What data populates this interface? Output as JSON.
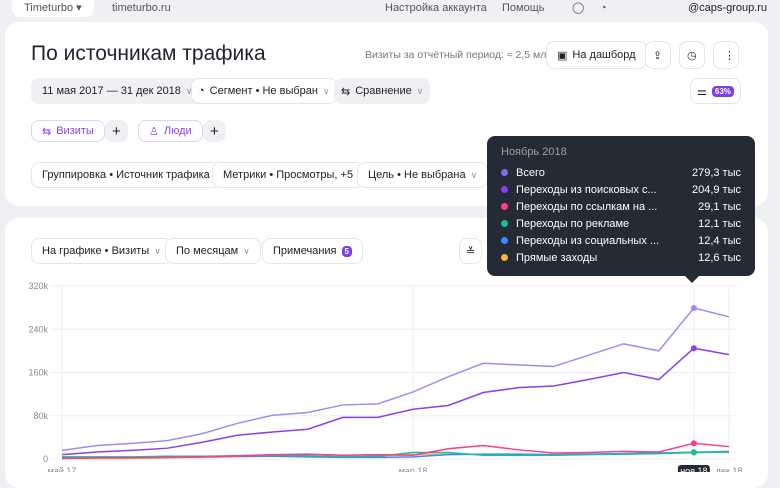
{
  "topbar": {
    "counter": "Timeturbo",
    "site": "timeturbo.ru",
    "account_settings": "Настройка аккаунта",
    "help": "Помощь",
    "user": "@caps-group.ru"
  },
  "header": {
    "title": "По источникам трафика",
    "visits_summary": "Визиты за отчётный период: ≈ 2,5 млн",
    "dashboard_label": "На дашборд",
    "settings_badge": "63%"
  },
  "filters": {
    "date_range": "11 мая 2017 — 31 дек 2018",
    "segment": "Сегмент • Не выбран",
    "comparison": "Сравнение"
  },
  "chips": {
    "visits": "Визиты",
    "people": "Люди"
  },
  "settings": {
    "grouping": "Группировка • Источник трафика",
    "metrics": "Метрики • Просмотры, +5",
    "goal": "Цель • Не выбрана"
  },
  "chart_controls": {
    "on_chart": "На графике • Визиты",
    "period": "По месяцам",
    "notes": "Примечания",
    "notes_count": "5"
  },
  "tooltip": {
    "title": "Ноябрь 2018",
    "rows": [
      {
        "label": "Всего",
        "value": "279,3 тыс",
        "color": "#7b6fe8"
      },
      {
        "label": "Переходы из поисковых с...",
        "value": "204,9 тыс",
        "color": "#8a3ff0"
      },
      {
        "label": "Переходы по ссылкам на ...",
        "value": "29,1 тыс",
        "color": "#ff3d8b"
      },
      {
        "label": "Переходы по рекламе",
        "value": "12,1 тыс",
        "color": "#1abc9c"
      },
      {
        "label": "Переходы из социальных ...",
        "value": "12,4 тыс",
        "color": "#3d8bff"
      },
      {
        "label": "Прямые заходы",
        "value": "12,6 тыс",
        "color": "#ffb347"
      }
    ]
  },
  "chart_data": {
    "type": "line",
    "x": [
      "май 17",
      "июн 17",
      "июл 17",
      "авг 17",
      "сен 17",
      "окт 17",
      "ноя 17",
      "дек 17",
      "янв 18",
      "фев 18",
      "мар 18",
      "апр 18",
      "май 18",
      "июн 18",
      "июл 18",
      "авг 18",
      "сен 18",
      "окт 18",
      "ноя 18",
      "дек 18"
    ],
    "x_tick_labels": [
      {
        "index": 0,
        "label": "май 17"
      },
      {
        "index": 10,
        "label": "мар 18"
      },
      {
        "index": 18,
        "label": "ноя 18"
      },
      {
        "index": 19,
        "label": "дек 18"
      }
    ],
    "highlight_index": 18,
    "y_ticks": [
      "0",
      "80k",
      "160k",
      "240k",
      "320k"
    ],
    "ylim": [
      0,
      320000
    ],
    "grid": true,
    "series": [
      {
        "name": "Всего",
        "color": "#9a8ff0",
        "values": [
          16000,
          25000,
          29000,
          34000,
          47000,
          66000,
          81000,
          86000,
          100000,
          102000,
          124000,
          152000,
          177000,
          174000,
          171000,
          192000,
          213000,
          200000,
          279300,
          263000
        ]
      },
      {
        "name": "Переходы из поисковых систем",
        "color": "#8a3ff0",
        "values": [
          8000,
          13000,
          16000,
          20000,
          31000,
          44000,
          50000,
          55000,
          77000,
          77000,
          92000,
          99000,
          123000,
          132000,
          135000,
          147000,
          160000,
          147000,
          204900,
          193000
        ]
      },
      {
        "name": "Переходы по ссылкам на сайтах",
        "color": "#ff3d8b",
        "values": [
          1000,
          2000,
          2000,
          3000,
          4000,
          6000,
          8000,
          9000,
          7000,
          8000,
          7000,
          19000,
          25000,
          17000,
          11000,
          12000,
          14000,
          13000,
          29100,
          23000
        ]
      },
      {
        "name": "Переходы по рекламе",
        "color": "#1abc9c",
        "values": [
          4000,
          4000,
          4000,
          5000,
          5000,
          6000,
          7000,
          6000,
          4000,
          5000,
          12000,
          12000,
          7000,
          7000,
          7000,
          8000,
          9000,
          10000,
          12100,
          13000
        ]
      },
      {
        "name": "Переходы из социальных сетей",
        "color": "#3d8bff",
        "values": [
          3000,
          3000,
          3000,
          3000,
          4000,
          5000,
          5000,
          4000,
          3000,
          3000,
          4000,
          8000,
          9000,
          9000,
          8000,
          9000,
          10000,
          11000,
          12400,
          14000
        ]
      },
      {
        "name": "Прямые заходы",
        "color": "#ffb347",
        "values": [
          1000,
          1000,
          1000,
          2000,
          3000,
          4000,
          5000,
          5000,
          6000,
          6000,
          8000,
          9000,
          8000,
          8000,
          8000,
          9000,
          10000,
          11000,
          12600,
          12000
        ]
      }
    ]
  }
}
